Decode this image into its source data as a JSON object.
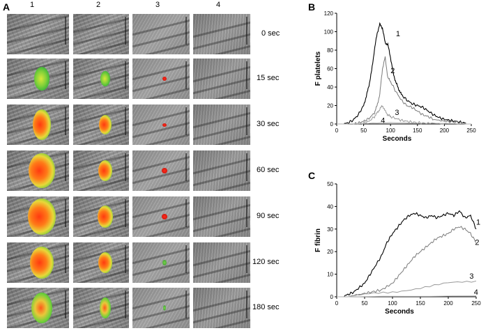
{
  "panel_a": {
    "letter": "A",
    "columns": [
      "1",
      "2",
      "3",
      "4"
    ],
    "times": [
      "0 sec",
      "15 sec",
      "30 sec",
      "60 sec",
      "90 sec",
      "120 sec",
      "180 sec"
    ]
  },
  "chart_data": [
    {
      "type": "line",
      "panel": "B",
      "xlabel": "Seconds",
      "ylabel": "F platelets",
      "xlim": [
        0,
        250
      ],
      "ylim": [
        0,
        120
      ],
      "xticks": [
        0,
        50,
        100,
        150,
        200,
        250
      ],
      "yticks": [
        0,
        20,
        40,
        60,
        80,
        100,
        120
      ],
      "series": [
        {
          "name": "1",
          "color": "#000000",
          "x": [
            10,
            20,
            30,
            40,
            50,
            55,
            60,
            65,
            70,
            75,
            80,
            85,
            90,
            95,
            100,
            105,
            110,
            115,
            120,
            130,
            140,
            150,
            160,
            170,
            180,
            190,
            200,
            210,
            220,
            230,
            240
          ],
          "y": [
            0,
            1,
            4,
            10,
            20,
            30,
            42,
            58,
            80,
            98,
            108,
            104,
            88,
            86,
            72,
            55,
            45,
            38,
            32,
            26,
            22,
            20,
            18,
            14,
            10,
            7,
            5,
            4,
            3,
            2,
            1
          ]
        },
        {
          "name": "2",
          "color": "#7a7a7a",
          "x": [
            30,
            40,
            50,
            60,
            70,
            75,
            80,
            85,
            90,
            95,
            100,
            110,
            120,
            130,
            140,
            150,
            160,
            170,
            180,
            200,
            220,
            240
          ],
          "y": [
            0,
            1,
            3,
            6,
            12,
            20,
            32,
            60,
            72,
            50,
            46,
            35,
            26,
            20,
            18,
            14,
            10,
            8,
            5,
            3,
            2,
            1
          ]
        },
        {
          "name": "3",
          "color": "#999999",
          "x": [
            40,
            50,
            60,
            70,
            75,
            80,
            85,
            90,
            95,
            100,
            110,
            120,
            130,
            140,
            160,
            180,
            200
          ],
          "y": [
            0,
            1,
            3,
            8,
            12,
            16,
            20,
            14,
            10,
            8,
            6,
            4,
            3,
            2,
            1,
            1,
            0
          ]
        },
        {
          "name": "4",
          "color": "#b5b5b5",
          "x": [
            0,
            50,
            100,
            150,
            200,
            250
          ],
          "y": [
            0,
            0.5,
            1.5,
            1,
            0.5,
            0
          ]
        }
      ]
    },
    {
      "type": "line",
      "panel": "C",
      "xlabel": "Seconds",
      "ylabel": "F fibrin",
      "xlim": [
        0,
        250
      ],
      "ylim": [
        0,
        50
      ],
      "xticks": [
        0,
        50,
        100,
        150,
        200,
        250
      ],
      "yticks": [
        0,
        10,
        20,
        30,
        40,
        50
      ],
      "series": [
        {
          "name": "1",
          "color": "#000000",
          "x": [
            10,
            20,
            30,
            40,
            50,
            60,
            70,
            80,
            90,
            100,
            110,
            120,
            130,
            140,
            150,
            160,
            170,
            180,
            190,
            200,
            210,
            220,
            230,
            240,
            250
          ],
          "y": [
            0,
            1,
            2,
            4,
            6,
            10,
            14,
            18,
            24,
            28,
            31,
            34,
            36,
            37,
            36,
            35,
            36,
            35,
            36,
            37,
            36,
            38,
            35,
            36,
            30
          ]
        },
        {
          "name": "2",
          "color": "#7a7a7a",
          "x": [
            20,
            40,
            60,
            80,
            100,
            110,
            120,
            130,
            140,
            150,
            160,
            170,
            180,
            190,
            200,
            210,
            220,
            230,
            240,
            250
          ],
          "y": [
            0,
            1,
            2,
            3,
            6,
            9,
            12,
            15,
            18,
            20,
            22,
            24,
            26,
            27,
            28,
            30,
            31,
            30,
            28,
            24
          ]
        },
        {
          "name": "3",
          "color": "#999999",
          "x": [
            20,
            50,
            100,
            150,
            200,
            250
          ],
          "y": [
            0,
            1,
            2,
            4,
            6,
            7
          ]
        },
        {
          "name": "4",
          "color": "#b5b5b5",
          "x": [
            0,
            250
          ],
          "y": [
            0,
            0.4
          ]
        }
      ]
    }
  ],
  "labels": {
    "b": "B",
    "c": "C"
  }
}
